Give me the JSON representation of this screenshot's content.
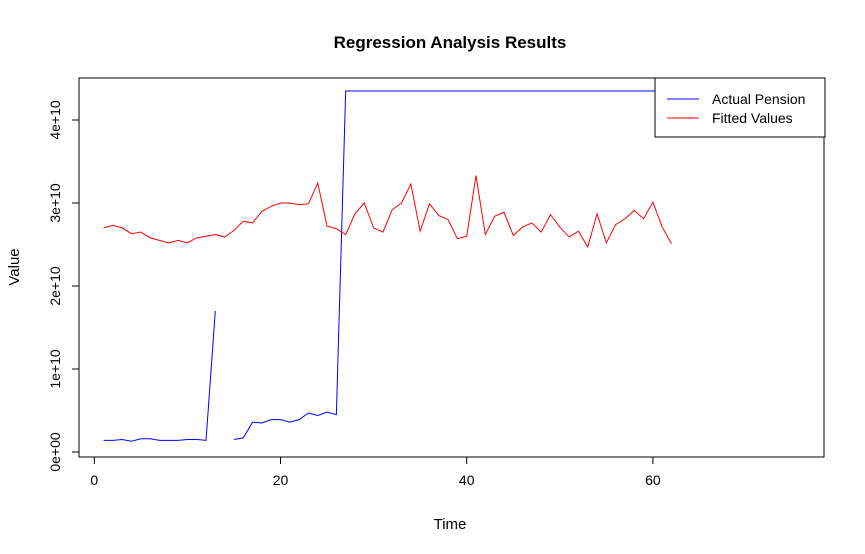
{
  "chart_data": {
    "type": "line",
    "title": "Regression Analysis Results",
    "xlabel": "Time",
    "ylabel": "Value",
    "xlim": [
      0,
      78
    ],
    "ylim": [
      0,
      44000000000
    ],
    "x_ticks": [
      0,
      20,
      40,
      60
    ],
    "x_tick_labels": [
      "0",
      "20",
      "40",
      "60"
    ],
    "y_ticks": [
      0,
      10000000000,
      20000000000,
      30000000000,
      40000000000
    ],
    "y_tick_labels": [
      "0e+00",
      "1e+10",
      "2e+10",
      "3e+10",
      "4e+10"
    ],
    "grid": false,
    "legend_position": "top-right",
    "series": [
      {
        "name": "Actual Pension",
        "color": "#0000ff",
        "x": [
          1,
          2,
          3,
          4,
          5,
          6,
          7,
          8,
          9,
          10,
          11,
          12,
          13,
          14,
          15,
          16,
          17,
          18,
          19,
          20,
          21,
          22,
          23,
          24,
          25,
          26,
          27,
          28,
          29,
          30,
          31,
          32,
          33,
          34,
          35,
          36,
          37,
          38,
          39,
          40,
          41,
          42,
          43,
          44,
          45,
          46,
          47,
          48,
          49,
          50,
          51,
          52,
          53,
          54,
          55,
          56,
          57,
          58,
          59,
          60,
          61,
          62,
          63,
          64,
          65,
          66,
          67,
          68,
          69,
          70,
          71,
          72,
          73,
          74
        ],
        "y": [
          1400000000,
          1400000000,
          1500000000,
          1300000000,
          1600000000,
          1600000000,
          1400000000,
          1400000000,
          1400000000,
          1500000000,
          1500000000,
          1400000000,
          17000000000,
          null,
          1500000000,
          1700000000,
          3600000000,
          3500000000,
          3900000000,
          3900000000,
          3600000000,
          3900000000,
          4700000000,
          4400000000,
          4800000000,
          4500000000,
          43500000000,
          43500000000,
          43500000000,
          43500000000,
          43500000000,
          43500000000,
          43500000000,
          43500000000,
          43500000000,
          43500000000,
          43500000000,
          43500000000,
          43500000000,
          43500000000,
          43500000000,
          43500000000,
          43500000000,
          43500000000,
          43500000000,
          43500000000,
          43500000000,
          43500000000,
          43500000000,
          43500000000,
          43500000000,
          43500000000,
          43500000000,
          43500000000,
          43500000000,
          43500000000,
          43500000000,
          43500000000,
          43500000000,
          43500000000,
          43500000000,
          43500000000,
          43500000000,
          43500000000,
          43500000000,
          43500000000,
          43500000000,
          43500000000,
          43500000000,
          43500000000,
          43500000000,
          43500000000,
          43500000000,
          43500000000
        ]
      },
      {
        "name": "Fitted Values",
        "color": "#ff0000",
        "x": [
          1,
          2,
          3,
          4,
          5,
          6,
          7,
          8,
          9,
          10,
          11,
          12,
          13,
          14,
          15,
          16,
          17,
          18,
          19,
          20,
          21,
          22,
          23,
          24,
          25,
          26,
          27,
          28,
          29,
          30,
          31,
          32,
          33,
          34,
          35,
          36,
          37,
          38,
          39,
          40,
          41,
          42,
          43,
          44,
          45,
          46,
          47,
          48,
          49,
          50,
          51,
          52,
          53,
          54,
          55,
          56,
          57,
          58,
          59,
          60,
          61,
          62
        ],
        "y": [
          27000000000,
          27300000000,
          27000000000,
          26300000000,
          26500000000,
          25800000000,
          25500000000,
          25200000000,
          25500000000,
          25200000000,
          25800000000,
          26000000000,
          26200000000,
          25900000000,
          26700000000,
          27800000000,
          27600000000,
          29000000000,
          29600000000,
          30000000000,
          30000000000,
          29800000000,
          29900000000,
          32400000000,
          27200000000,
          26900000000,
          26200000000,
          28700000000,
          30000000000,
          27000000000,
          26500000000,
          29200000000,
          30000000000,
          32300000000,
          26600000000,
          29900000000,
          28500000000,
          28000000000,
          25700000000,
          26000000000,
          33300000000,
          26200000000,
          28400000000,
          28900000000,
          26100000000,
          27100000000,
          27600000000,
          26500000000,
          28600000000,
          27100000000,
          25900000000,
          26600000000,
          24700000000,
          28700000000,
          25200000000,
          27400000000,
          28100000000,
          29100000000,
          28100000000,
          30100000000,
          27100000000,
          25100000000
        ]
      }
    ]
  }
}
